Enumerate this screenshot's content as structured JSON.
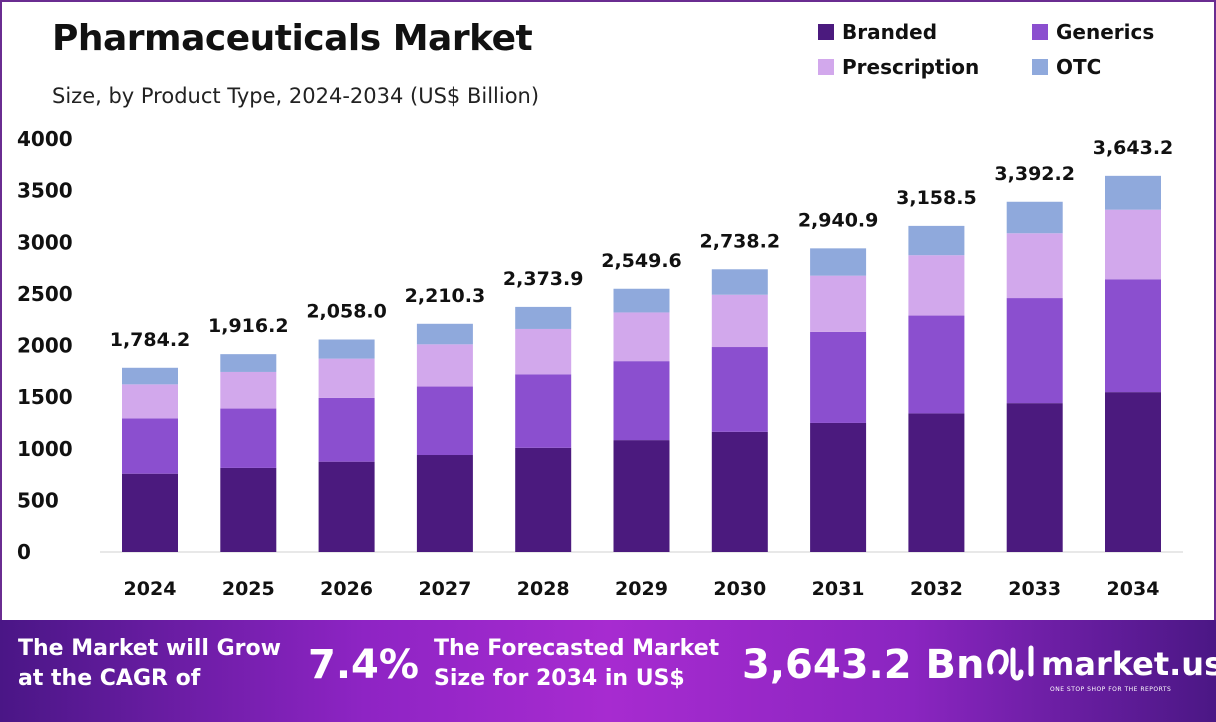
{
  "title": "Pharmaceuticals Market",
  "subtitle": "Size, by Product Type, 2024-2034 (US$ Billion)",
  "colors": {
    "Branded": "#4b1a7e",
    "Generics": "#8b4fcf",
    "Prescription": "#d2a8ec",
    "OTC": "#8fa9dc"
  },
  "chart_data": {
    "type": "bar",
    "stacked": true,
    "title": "Pharmaceuticals Market",
    "subtitle": "Size, by Product Type, 2024-2034 (US$ Billion)",
    "categories": [
      "2024",
      "2025",
      "2026",
      "2027",
      "2028",
      "2029",
      "2030",
      "2031",
      "2032",
      "2033",
      "2034"
    ],
    "series": [
      {
        "name": "Branded",
        "values": [
          758.3,
          814.4,
          874.7,
          939.4,
          1008.9,
          1083.6,
          1163.7,
          1249.9,
          1342.4,
          1441.7,
          1548.4
        ]
      },
      {
        "name": "Generics",
        "values": [
          535.3,
          574.9,
          617.4,
          663.1,
          712.2,
          764.9,
          821.5,
          882.3,
          947.6,
          1017.7,
          1093.0
        ]
      },
      {
        "name": "Prescription",
        "values": [
          330.1,
          354.5,
          380.7,
          408.9,
          439.2,
          471.7,
          506.6,
          544.1,
          584.3,
          627.6,
          674.0
        ]
      },
      {
        "name": "OTC",
        "values": [
          160.5,
          172.4,
          185.2,
          198.9,
          213.6,
          229.4,
          246.4,
          264.6,
          284.2,
          305.2,
          327.8
        ]
      }
    ],
    "totals": [
      1784.2,
      1916.2,
      2058.0,
      2210.3,
      2373.9,
      2549.6,
      2738.2,
      2940.9,
      3158.5,
      3392.2,
      3643.2
    ],
    "total_labels": [
      "1,784.2",
      "1,916.2",
      "2,058.0",
      "2,210.3",
      "2,373.9",
      "2,549.6",
      "2,738.2",
      "2,940.9",
      "3,158.5",
      "3,392.2",
      "3,643.2"
    ],
    "yticks": [
      0,
      500,
      1000,
      1500,
      2000,
      2500,
      3000,
      3500,
      4000
    ],
    "ylim": [
      0,
      4000
    ],
    "xlabel": "",
    "ylabel": "",
    "grid": false,
    "legend_position": "top-right"
  },
  "footer": {
    "cagr_text_1": "The Market will Grow",
    "cagr_text_2": "at the CAGR of",
    "cagr_value": "7.4%",
    "forecast_text_1": "The Forecasted Market",
    "forecast_text_2": "Size for 2034 in US$",
    "forecast_value": "3,643.2 Bn",
    "brand": "market.us",
    "brand_tagline": "ONE STOP SHOP FOR THE REPORTS"
  }
}
